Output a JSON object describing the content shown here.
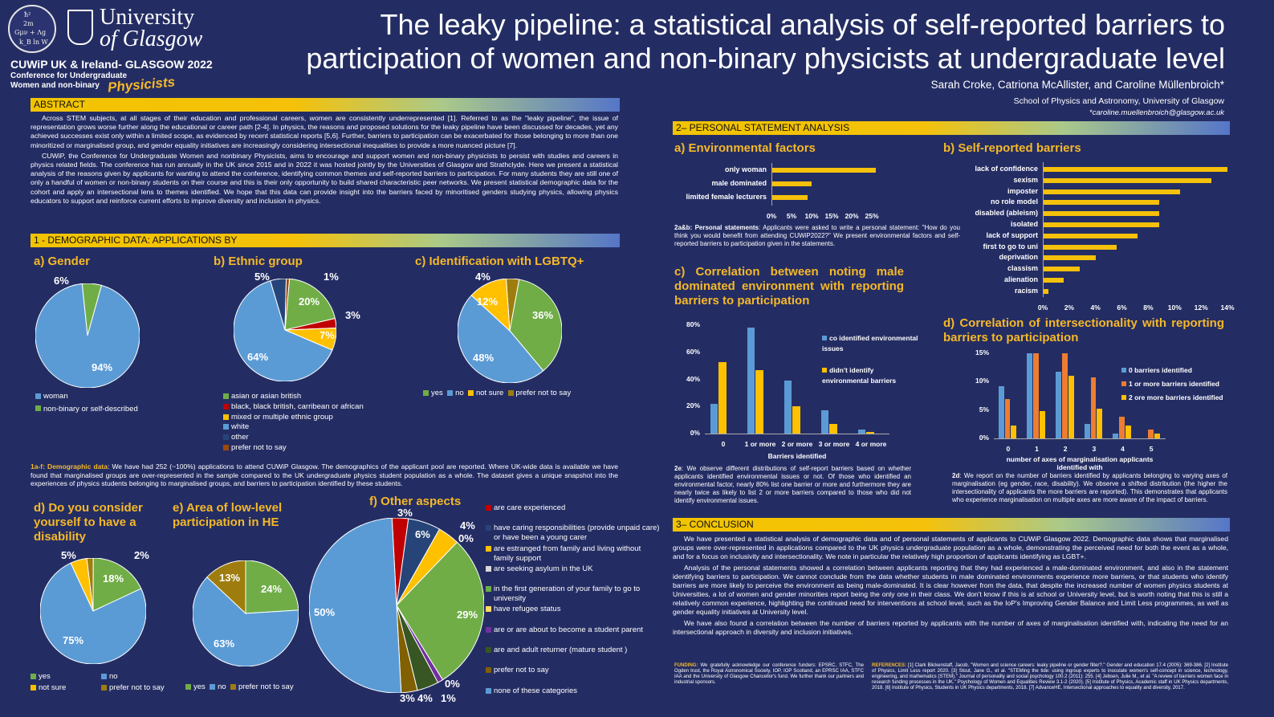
{
  "header": {
    "seal_formula": [
      "ħ²",
      "2m",
      "Gμν + Λg",
      "k_B ln W"
    ],
    "university_line1": "University",
    "university_line2": "of Glasgow",
    "conf_title": "CUWiP UK & Ireland- GLASGOW 2022",
    "conf_sub1": "Conference for Undergraduate",
    "conf_sub2": "Women and non-binary",
    "conf_sub3": "Physicists",
    "title": "The leaky pipeline: a statistical analysis of self-reported barriers to participation of women and non-binary physicists at undergraduate level",
    "authors": "Sarah Croke, Catriona McAllister, and Caroline Müllenbroich*",
    "affiliation": "School of Physics and Astronomy, University of Glasgow",
    "email": "*caroline.muellenbroich@glasgow.ac.uk"
  },
  "abstract": {
    "heading": "ABSTRACT",
    "p1": "Across STEM subjects, at all stages of their education and professional careers, women are consistently underrepresented [1]. Referred to as the \"leaky pipeline\", the issue of representation grows worse further along the educational or career path [2-4]. In physics, the reasons and proposed solutions for the leaky pipeline have been discussed for decades, yet any achieved successes exist only within a limited scope, as evidenced by recent statistical reports [5,6]. Further, barriers to participation can be exacerbated for those belonging to more than one minoritized or marginalised group, and gender equality initiatives are increasingly considering intersectional inequalities to provide a more nuanced picture [7].",
    "p2": "CUWiP, the Conference for Undergraduate Women and nonbinary Physicists, aims to encourage and support women and non-binary physicists to persist with studies and careers in physics related fields. The conference has run annually in the UK since 2015 and in 2022 it was hosted jointly by the Universities of Glasgow and Strathclyde. Here we present a statistical analysis of the reasons given by applicants for wanting to attend the conference, identifying common themes and self-reported barriers to participation. For many students they are still one of only a handful of women or non-binary students on their course and this is their only opportunity to build shared characteristic peer networks. We present statistical demographic data for the cohort and apply an intersectional lens to themes identified. We hope that this data can provide insight into the barriers faced by minoritised genders studying physics, allowing physics educators to support and reinforce current efforts to improve diversity and inclusion in physics."
  },
  "demographic": {
    "heading": "1 - DEMOGRAPHIC DATA: APPLICATIONS BY",
    "gender_title": "a) Gender",
    "gender_labels": [
      "94%",
      "6%"
    ],
    "gender_legend": [
      "woman",
      "non-binary or self-described"
    ],
    "ethnic_title": "b) Ethnic group",
    "ethnic_labels": [
      "5%",
      "1%",
      "20%",
      "3%",
      "7%",
      "64%"
    ],
    "ethnic_legend": [
      "asian or asian british",
      "black, black british, carribean or african",
      "mixed or multiple ethnic group",
      "white",
      "other",
      "prefer not to say"
    ],
    "lgbt_title": "c) Identification with LGBTQ+",
    "lgbt_labels": [
      "4%",
      "12%",
      "36%",
      "48%"
    ],
    "lgbt_legend": [
      "yes",
      "no",
      "not sure",
      "prefer not to say"
    ],
    "caption_bold": "1a-f: Demographic data",
    "caption": ": We have had 252 (~100%) applications to attend CUWiP Glasgow. The demographics of the applicant pool are reported. Where UK-wide data is available we have found that marginalised groups are over-represented in the sample compared to the UK undergraduate physics student population as a whole. The dataset gives a unique snapshot into the experiences of physics students belonging to marginalised groups, and barriers to participation identified by these students.",
    "disab_title": "d) Do you consider yourself to have a disability",
    "disab_labels": [
      "5%",
      "2%",
      "18%",
      "75%"
    ],
    "disab_legend": [
      "yes",
      "no",
      "not sure",
      "prefer not to say"
    ],
    "low_title": "e) Area of low-level participation in HE",
    "low_labels": [
      "13%",
      "24%",
      "63%"
    ],
    "low_legend": [
      "yes",
      "no",
      "prefer not to say"
    ],
    "other_title": "f) Other aspects",
    "other_labels": [
      "3%",
      "6%",
      "4%",
      "0%",
      "29%",
      "50%",
      "0%",
      "3%",
      "4%",
      "1%"
    ],
    "other_legend": [
      "are care experienced",
      "have caring responsibilities (provide unpaid care) or have been a young carer",
      "are estranged from family and living without family support",
      "are seeking asylum in the UK",
      "in the first generation of your family to go to university",
      "have refugee status",
      "are or are about to become a student parent",
      "are and adult returner (mature student )",
      "prefer not to say",
      "none of these categories"
    ]
  },
  "personal": {
    "heading": "2– PERSONAL STATEMENT ANALYSIS",
    "env_title": "a) Environmental factors",
    "env_categories": [
      "only woman",
      "male dominated",
      "limited female lecturers"
    ],
    "env_ticks": [
      "0%",
      "5%",
      "10%",
      "15%",
      "20%",
      "25%"
    ],
    "barriers_title": "b) Self-reported barriers",
    "barriers_categories": [
      "lack of confidence",
      "sexism",
      "imposter",
      "no role model",
      "disabled (ableism)",
      "isolated",
      "lack of support",
      "first to go to uni",
      "deprivation",
      "classism",
      "alienation",
      "racism"
    ],
    "barriers_ticks": [
      "0%",
      "2%",
      "4%",
      "6%",
      "8%",
      "10%",
      "12%",
      "14%"
    ],
    "ab_bold": "2a&b: Personal statements",
    "ab_text": ": Applicants were asked to write a personal statement: \"How do you think you would benefit from attending CUWiP2022?\" We present environmental factors and self-reported barriers to participation given in the statements.",
    "c_title": "c) Correlation between noting male dominated environment with reporting barriers to participation",
    "c_yticks": [
      "80%",
      "60%",
      "40%",
      "20%",
      "0%"
    ],
    "c_xticks": [
      "0",
      "1 or more",
      "2 or more",
      "3 or more",
      "4 or more"
    ],
    "c_xlabel": "Barriers identified",
    "c_legend": [
      "co identified environmental issues",
      "didn't identify environmental barriers"
    ],
    "c_bold": "2e",
    "c_text": ": We observe different distributions of self-report barriers based on whether applicants identified environmental issues or not. Of those who identified an environmental factor, nearly 80% list one barrier or more and furthermore they are nearly twice as likely to list 2 or more barriers compared to those who did not identify environmental issues.",
    "d_title": "d) Correlation of intersectionality with reporting barriers to participation",
    "d_yticks": [
      "15%",
      "10%",
      "5%",
      "0%"
    ],
    "d_xticks": [
      "0",
      "1",
      "2",
      "3",
      "4",
      "5"
    ],
    "d_xlabel": "number of axes of marginalisation applicants identified with",
    "d_legend": [
      "0 barriers identified",
      "1 or more barriers identified",
      "2 ore more barriers identified"
    ],
    "d_bold": "2d",
    "d_text": ": We report on the number of barriers identified by applicants belonging to varying axes of marginalisation (eg gender, race, disability). We observe a shifted distribution (the higher the intersectionality of applicants the more barriers are reported). This demonstrates that applicants who experience marginalisation on multiple axes are more aware of the impact of barriers."
  },
  "conclusion": {
    "heading": "3– CONCLUSION",
    "p1": "We have presented a statistical analysis of demographic data and of personal statements of applicants to CUWiP Glasgow 2022. Demographic data shows that marginalised groups were over-represented in applications compared to the UK physics undergraduate population as a whole, demonstrating the perceived need for both the event as a whole, and for a focus on inclusivity and intersectionality. We note in particular the relatively high proportion of applicants identifying as LGBT+.",
    "p2": "Analysis of the personal statements showed a correlation between applicants reporting that they had experienced a male-dominated environment, and also in the statement identifying barriers to participation. We cannot conclude from the data whether students in male dominated environments experience more barriers, or that students who identify barriers are more likely to perceive the environment as being male-dominated. It is clear however from the data, that despite the increased number of women physics students at Universities, a lot of women and gender minorities report being the only one in their class. We don't know if this is at school or University level, but is worth noting that this is still a relatively common experience, highlighting the continued need for interventions at school level, such as the IoP's Improving Gender Balance and Limit Less programmes, as well as gender equality initiatives at University level.",
    "p3": "We have also found a correlation between the number of barriers reported by applicants with the number of axes of marginalisation identified with, indicating the need for an intersectional approach in diversity and inclusion initiatives.",
    "funding_bold": "FUNDING:",
    "funding": " We gratefully acknowledge our conference funders: EPSRC, STFC, The Ogden trust, the Royal Astronomical Society, IOP, IOP Scotland, an EPRSC IAA, STFC IAA and the University of Glasgow Chancellor's fund. We further thank our partners and industrial sponsors.",
    "refs_bold": "REFERENCES:",
    "refs": " [1] Clark Blickenstaff, Jacob. \"Women and science careers: leaky pipeline or gender filter?.\" Gender and education 17.4 (2005): 369-386. [2] Institute of Physics, Limit Less report 2020. [3] Stout, Jane G., et al. \"STEMing the tide: using ingroup experts to inoculate women's self-concept in science, technology, engineering, and mathematics (STEM).\" Journal of personality and social psychology 100.2 (2011): 255. [4] Jebsen, Julie M., et al. \"A review of barriers women face in research funding processes in the UK.\" Psychology of Women and Equalities Review 3.1-2 (2020). [5] Institute of Physics, Academic staff in UK Physics departments, 2018. [6] Institute of Physics, Students in UK Physics departments, 2018. [7] AdvanceHE, Intersectional approaches to equality and diversity, 2017."
  },
  "chart_data": [
    {
      "type": "pie",
      "title": "a) Gender",
      "categories": [
        "woman",
        "non-binary or self-described"
      ],
      "values": [
        94,
        6
      ],
      "colors": [
        "#5b9bd5",
        "#70ad47"
      ]
    },
    {
      "type": "pie",
      "title": "b) Ethnic group",
      "categories": [
        "asian or asian british",
        "black, black british, carribean or african",
        "mixed or multiple ethnic group",
        "white",
        "other",
        "prefer not to say"
      ],
      "values": [
        20,
        3,
        7,
        64,
        5,
        1
      ],
      "colors": [
        "#70ad47",
        "#c00000",
        "#ffc000",
        "#5b9bd5",
        "#264478",
        "#9e480e"
      ]
    },
    {
      "type": "pie",
      "title": "c) Identification with LGBTQ+",
      "categories": [
        "yes",
        "no",
        "not sure",
        "prefer not to say"
      ],
      "values": [
        36,
        48,
        12,
        4
      ],
      "colors": [
        "#70ad47",
        "#5b9bd5",
        "#ffc000",
        "#9e7d0e"
      ]
    },
    {
      "type": "pie",
      "title": "d) Do you consider yourself to have a disability",
      "categories": [
        "yes",
        "no",
        "not sure",
        "prefer not to say"
      ],
      "values": [
        18,
        75,
        5,
        2
      ],
      "colors": [
        "#70ad47",
        "#5b9bd5",
        "#ffc000",
        "#9e7d0e"
      ]
    },
    {
      "type": "pie",
      "title": "e) Area of low-level participation in HE",
      "categories": [
        "yes",
        "no",
        "prefer not to say"
      ],
      "values": [
        24,
        63,
        13
      ],
      "colors": [
        "#70ad47",
        "#5b9bd5",
        "#9e7d0e"
      ]
    },
    {
      "type": "pie",
      "title": "f) Other aspects",
      "categories": [
        "are care experienced",
        "have caring responsibilities (provide unpaid care) or have been a young carer",
        "are estranged from family and living without family support",
        "are seeking asylum in the UK",
        "in the first generation of your family to go to university",
        "have refugee status",
        "are or are about to become a student parent",
        "are and adult returner (mature student )",
        "prefer not to say",
        "none of these categories"
      ],
      "values": [
        3,
        6,
        4,
        0,
        29,
        0,
        1,
        4,
        3,
        50
      ],
      "colors": [
        "#c00000",
        "#264478",
        "#ffc000",
        "#d9d9d9",
        "#70ad47",
        "#ffd966",
        "#7030a0",
        "#375623",
        "#806000",
        "#5b9bd5"
      ]
    },
    {
      "type": "bar",
      "title": "a) Environmental factors",
      "categories": [
        "only woman",
        "male dominated",
        "limited female lecturers"
      ],
      "values": [
        26,
        10,
        9
      ],
      "xlim": [
        0,
        25
      ]
    },
    {
      "type": "bar",
      "title": "b) Self-reported barriers",
      "categories": [
        "lack of confidence",
        "sexism",
        "imposter",
        "no role model",
        "disabled (ableism)",
        "isolated",
        "lack of support",
        "first to go to uni",
        "deprivation",
        "classism",
        "alienation",
        "racism"
      ],
      "values": [
        14,
        12.8,
        10.4,
        8.8,
        8.8,
        8.8,
        7.2,
        5.6,
        4.0,
        2.8,
        1.6,
        0.4
      ],
      "xlim": [
        0,
        14
      ]
    },
    {
      "type": "bar",
      "title": "c) Correlation between noting male dominated environment with reporting barriers to participation",
      "categories": [
        "0",
        "1 or more",
        "2 or more",
        "3 or more",
        "4 or more"
      ],
      "series": [
        {
          "name": "co identified environmental issues",
          "values": [
            22,
            78,
            39,
            17,
            3
          ]
        },
        {
          "name": "didn't identify environmental barriers",
          "values": [
            53,
            47,
            20,
            7,
            1
          ]
        }
      ],
      "xlabel": "Barriers identified",
      "ylim": [
        0,
        80
      ]
    },
    {
      "type": "bar",
      "title": "d) Correlation of intersectionality with reporting barriers to participation",
      "categories": [
        "0",
        "1",
        "2",
        "3",
        "4",
        "5"
      ],
      "series": [
        {
          "name": "0 barriers identified",
          "values": [
            9.2,
            15,
            11.8,
            2.6,
            0.8,
            0
          ]
        },
        {
          "name": "1 or more barriers identified",
          "values": [
            7,
            15,
            15,
            10.8,
            3.8,
            1.6
          ]
        },
        {
          "name": "2 ore more barriers identified",
          "values": [
            2.2,
            4.8,
            11,
            5.2,
            2.2,
            0.8
          ]
        }
      ],
      "xlabel": "number of axes of marginalisation applicants identified with",
      "ylim": [
        0,
        15
      ]
    }
  ]
}
